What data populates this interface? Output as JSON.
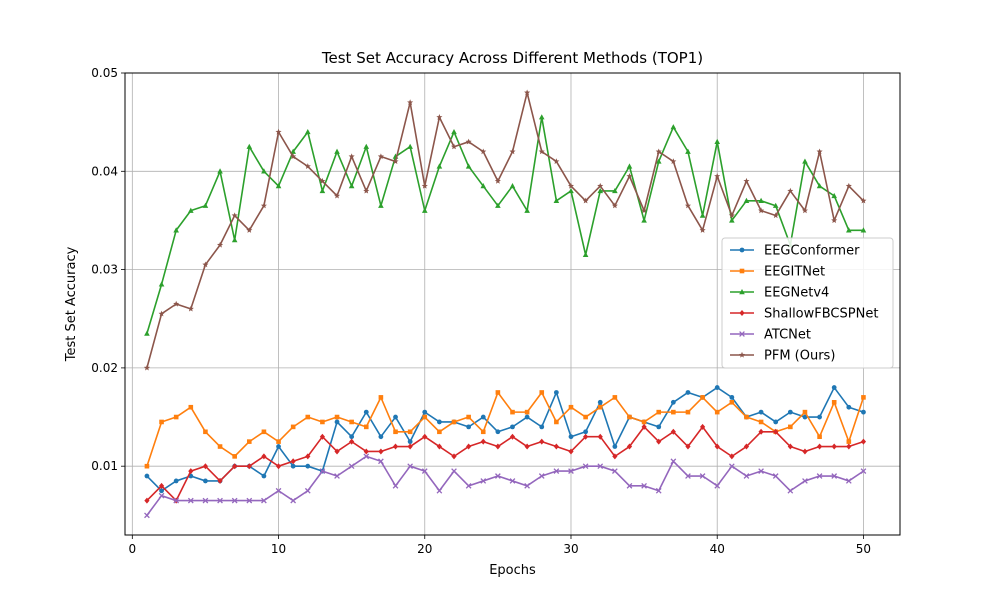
{
  "chart_data": {
    "type": "line",
    "title": "Test Set Accuracy Across Different Methods (TOP1)",
    "xlabel": "Epochs",
    "ylabel": "Test Set Accuracy",
    "xlim": [
      -0.5,
      52.5
    ],
    "ylim": [
      0.003,
      0.05
    ],
    "xticks": [
      0,
      10,
      20,
      30,
      40,
      50
    ],
    "yticks": [
      0.01,
      0.02,
      0.03,
      0.04,
      0.05
    ],
    "xtick_labels": [
      "0",
      "10",
      "20",
      "30",
      "40",
      "50"
    ],
    "ytick_labels": [
      "0.01",
      "0.02",
      "0.03",
      "0.04",
      "0.05"
    ],
    "grid": true,
    "legend_position": "center-right",
    "x": [
      1,
      2,
      3,
      4,
      5,
      6,
      7,
      8,
      9,
      10,
      11,
      12,
      13,
      14,
      15,
      16,
      17,
      18,
      19,
      20,
      21,
      22,
      23,
      24,
      25,
      26,
      27,
      28,
      29,
      30,
      31,
      32,
      33,
      34,
      35,
      36,
      37,
      38,
      39,
      40,
      41,
      42,
      43,
      44,
      45,
      46,
      47,
      48,
      49,
      50
    ],
    "series": [
      {
        "name": "EEGConformer",
        "color": "#1f77b4",
        "marker": "circle",
        "values": [
          0.009,
          0.0075,
          0.0085,
          0.009,
          0.0085,
          0.0085,
          0.01,
          0.01,
          0.009,
          0.012,
          0.01,
          0.01,
          0.0095,
          0.0145,
          0.013,
          0.0155,
          0.013,
          0.015,
          0.0125,
          0.0155,
          0.0145,
          0.0145,
          0.014,
          0.015,
          0.0135,
          0.014,
          0.015,
          0.014,
          0.0175,
          0.013,
          0.0135,
          0.0165,
          0.012,
          0.015,
          0.0145,
          0.014,
          0.0165,
          0.0175,
          0.017,
          0.018,
          0.017,
          0.015,
          0.0155,
          0.0145,
          0.0155,
          0.015,
          0.015,
          0.018,
          0.016,
          0.0155
        ]
      },
      {
        "name": "EEGITNet",
        "color": "#ff7f0e",
        "marker": "square",
        "values": [
          0.01,
          0.0145,
          0.015,
          0.016,
          0.0135,
          0.012,
          0.011,
          0.0125,
          0.0135,
          0.0125,
          0.014,
          0.015,
          0.0145,
          0.015,
          0.0145,
          0.014,
          0.017,
          0.0135,
          0.0135,
          0.015,
          0.0135,
          0.0145,
          0.015,
          0.0135,
          0.0175,
          0.0155,
          0.0155,
          0.0175,
          0.0145,
          0.016,
          0.015,
          0.016,
          0.017,
          0.015,
          0.0145,
          0.0155,
          0.0155,
          0.0155,
          0.017,
          0.0155,
          0.0165,
          0.015,
          0.0145,
          0.0135,
          0.014,
          0.0155,
          0.013,
          0.0165,
          0.0125,
          0.017
        ]
      },
      {
        "name": "EEGNetv4",
        "color": "#2ca02c",
        "marker": "triangle",
        "values": [
          0.0235,
          0.0285,
          0.034,
          0.036,
          0.0365,
          0.04,
          0.033,
          0.0425,
          0.04,
          0.0385,
          0.042,
          0.044,
          0.038,
          0.042,
          0.0385,
          0.0425,
          0.0365,
          0.0415,
          0.0425,
          0.036,
          0.0405,
          0.044,
          0.0405,
          0.0385,
          0.0365,
          0.0385,
          0.036,
          0.0455,
          0.037,
          0.038,
          0.0315,
          0.038,
          0.038,
          0.0405,
          0.035,
          0.041,
          0.0445,
          0.042,
          0.0355,
          0.043,
          0.035,
          0.037,
          0.037,
          0.0365,
          0.0325,
          0.041,
          0.0385,
          0.0375,
          0.034,
          0.034
        ]
      },
      {
        "name": "ShallowFBCSPNet",
        "color": "#d62728",
        "marker": "diamond",
        "values": [
          0.0065,
          0.008,
          0.0065,
          0.0095,
          0.01,
          0.0085,
          0.01,
          0.01,
          0.011,
          0.01,
          0.0105,
          0.011,
          0.013,
          0.0115,
          0.0125,
          0.0115,
          0.0115,
          0.012,
          0.012,
          0.013,
          0.012,
          0.011,
          0.012,
          0.0125,
          0.012,
          0.013,
          0.012,
          0.0125,
          0.012,
          0.0115,
          0.013,
          0.013,
          0.011,
          0.012,
          0.014,
          0.0125,
          0.0135,
          0.012,
          0.014,
          0.012,
          0.011,
          0.012,
          0.0135,
          0.0135,
          0.012,
          0.0115,
          0.012,
          0.012,
          0.012,
          0.0125
        ]
      },
      {
        "name": "ATCNet",
        "color": "#9467bd",
        "marker": "x",
        "values": [
          0.005,
          0.007,
          0.0065,
          0.0065,
          0.0065,
          0.0065,
          0.0065,
          0.0065,
          0.0065,
          0.0075,
          0.0065,
          0.0075,
          0.0095,
          0.009,
          0.01,
          0.011,
          0.0105,
          0.008,
          0.01,
          0.0095,
          0.0075,
          0.0095,
          0.008,
          0.0085,
          0.009,
          0.0085,
          0.008,
          0.009,
          0.0095,
          0.0095,
          0.01,
          0.01,
          0.0095,
          0.008,
          0.008,
          0.0075,
          0.0105,
          0.009,
          0.009,
          0.008,
          0.01,
          0.009,
          0.0095,
          0.009,
          0.0075,
          0.0085,
          0.009,
          0.009,
          0.0085,
          0.0095
        ]
      },
      {
        "name": "PFM (Ours)",
        "color": "#8c564b",
        "marker": "star",
        "values": [
          0.02,
          0.0255,
          0.0265,
          0.026,
          0.0305,
          0.0325,
          0.0355,
          0.034,
          0.0365,
          0.044,
          0.0415,
          0.0405,
          0.039,
          0.0375,
          0.0415,
          0.038,
          0.0415,
          0.041,
          0.047,
          0.0385,
          0.0455,
          0.0425,
          0.043,
          0.042,
          0.039,
          0.042,
          0.048,
          0.042,
          0.041,
          0.0385,
          0.037,
          0.0385,
          0.0365,
          0.0395,
          0.036,
          0.042,
          0.041,
          0.0365,
          0.034,
          0.0395,
          0.0355,
          0.039,
          0.036,
          0.0355,
          0.038,
          0.036,
          0.042,
          0.035,
          0.0385,
          0.037
        ]
      }
    ]
  }
}
